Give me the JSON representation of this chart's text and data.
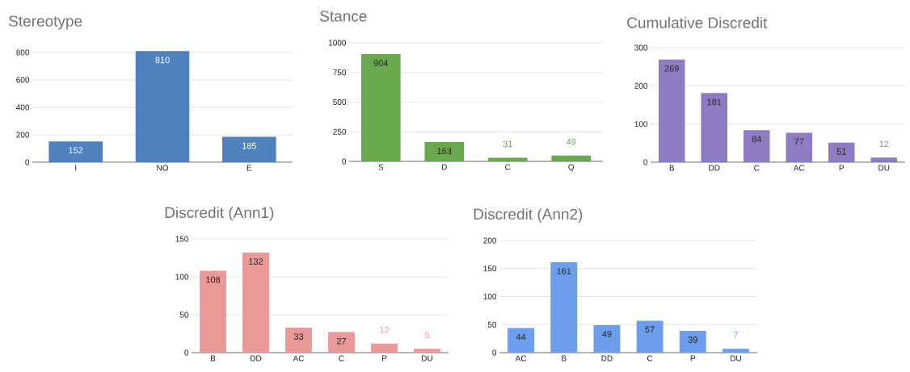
{
  "chart_data": [
    {
      "type": "bar",
      "title": "Stereotype",
      "categories": [
        "I",
        "NO",
        "E"
      ],
      "values": [
        152,
        810,
        185
      ],
      "color": "#4f81bd",
      "ylim": [
        0,
        820
      ],
      "yticks": [
        0,
        200,
        400,
        600,
        800
      ],
      "grid": "y",
      "data_labels": true
    },
    {
      "type": "bar",
      "title": "Stance",
      "categories": [
        "S",
        "D",
        "C",
        "Q"
      ],
      "values": [
        904,
        163,
        31,
        49
      ],
      "color": "#6aa84f",
      "ylim": [
        0,
        1000
      ],
      "yticks": [
        0,
        250,
        500,
        750,
        1000
      ],
      "grid": "y",
      "data_labels": true
    },
    {
      "type": "bar",
      "title": "Cumulative Discredit",
      "categories": [
        "B",
        "DD",
        "C",
        "AC",
        "P",
        "DU"
      ],
      "values": [
        269,
        181,
        84,
        77,
        51,
        12
      ],
      "color": "#8e7cc3",
      "ylim": [
        0,
        300
      ],
      "yticks": [
        0,
        100,
        200,
        300
      ],
      "grid": "y",
      "data_labels": true
    },
    {
      "type": "bar",
      "title": "Discredit (Ann1)",
      "categories": [
        "B",
        "DD",
        "AC",
        "C",
        "P",
        "DU"
      ],
      "values": [
        108,
        132,
        33,
        27,
        12,
        5
      ],
      "color": "#ea9999",
      "ylim": [
        0,
        150
      ],
      "yticks": [
        0,
        50,
        100,
        150
      ],
      "grid": "y",
      "data_labels": true
    },
    {
      "type": "bar",
      "title": "Discredit (Ann2)",
      "categories": [
        "AC",
        "B",
        "DD",
        "C",
        "P",
        "DU"
      ],
      "values": [
        44,
        161,
        49,
        57,
        39,
        7
      ],
      "color": "#6d9eeb",
      "ylim": [
        0,
        200
      ],
      "yticks": [
        0,
        50,
        100,
        150,
        200
      ],
      "grid": "y",
      "data_labels": true
    }
  ]
}
